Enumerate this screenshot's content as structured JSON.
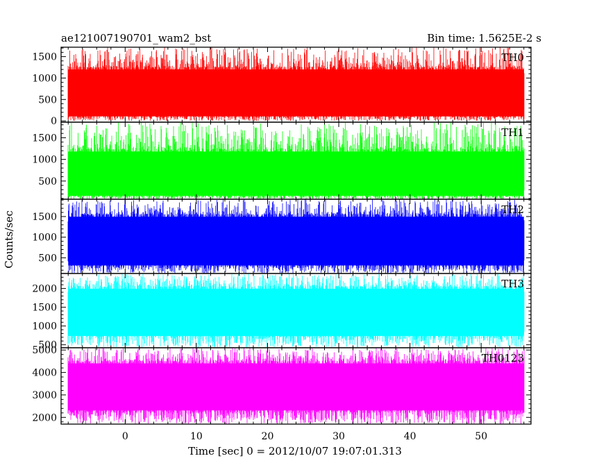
{
  "header": {
    "title": "ae121007190701_wam2_bst",
    "bin_time": "Bin time: 1.5625E-2 s"
  },
  "chart_data": {
    "type": "line",
    "title": "ae121007190701_wam2_bst",
    "xlabel": "Time [sec] 0 = 2012/10/07 19:07:01.313",
    "ylabel": "Counts/sec",
    "xlim": [
      -9,
      57
    ],
    "x_ticks": [
      0,
      10,
      20,
      30,
      40,
      50
    ],
    "x_tick_labels": [
      "0",
      "10",
      "20",
      "30",
      "40",
      "50"
    ],
    "x_data_range": [
      -8,
      56
    ],
    "grid": false,
    "panels": [
      {
        "name": "TH0",
        "color": "#ff0000",
        "ylim": [
          -30,
          1720
        ],
        "y_ticks": [
          0,
          500,
          1000,
          1500
        ],
        "y_tick_labels": [
          "0",
          "500",
          "1000",
          "1500"
        ],
        "band": {
          "low": 100,
          "mid": 640,
          "high": 1250
        },
        "noise_range": [
          0,
          1720
        ]
      },
      {
        "name": "TH1",
        "color": "#00ff00",
        "ylim": [
          80,
          1860
        ],
        "y_ticks": [
          500,
          1000,
          1500
        ],
        "y_tick_labels": [
          "500",
          "1000",
          "1500"
        ],
        "band": {
          "low": 150,
          "mid": 620,
          "high": 1230
        },
        "noise_range": [
          80,
          1860
        ]
      },
      {
        "name": "TH2",
        "color": "#0000ff",
        "ylim": [
          120,
          1920
        ],
        "y_ticks": [
          500,
          1000,
          1500
        ],
        "y_tick_labels": [
          "500",
          "1000",
          "1500"
        ],
        "band": {
          "low": 300,
          "mid": 870,
          "high": 1550
        },
        "noise_range": [
          120,
          1920
        ]
      },
      {
        "name": "TH3",
        "color": "#00ffff",
        "ylim": [
          420,
          2400
        ],
        "y_ticks": [
          500,
          1000,
          1500,
          2000
        ],
        "y_tick_labels": [
          "500",
          "1000",
          "1500",
          "2000"
        ],
        "band": {
          "low": 700,
          "mid": 1330,
          "high": 2050
        },
        "noise_range": [
          430,
          2400
        ]
      },
      {
        "name": "TH0123",
        "color": "#ff00ff",
        "ylim": [
          1700,
          5100
        ],
        "y_ticks": [
          2000,
          3000,
          4000,
          5000
        ],
        "y_tick_labels": [
          "2000",
          "3000",
          "4000",
          "5000"
        ],
        "band": {
          "low": 2200,
          "mid": 3300,
          "high": 4500
        },
        "noise_range": [
          1700,
          5100
        ]
      }
    ]
  }
}
